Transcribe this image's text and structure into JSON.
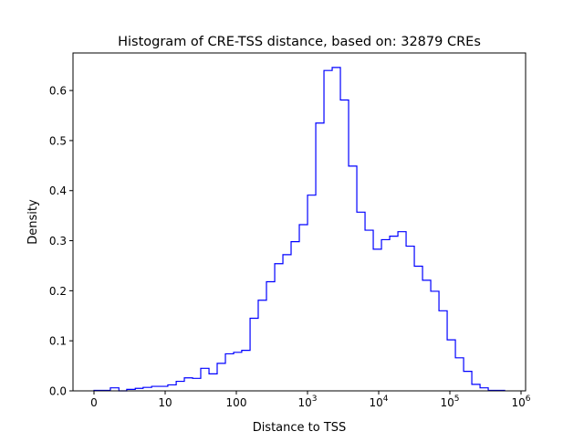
{
  "chart_data": {
    "type": "histogram",
    "title": "Histogram of CRE-TSS distance, based on: 32879 CREs",
    "xlabel": "Distance to TSS",
    "ylabel": "Density",
    "xscale": "symlog",
    "x_ticks": [
      {
        "value": 0,
        "label": "0",
        "sup": ""
      },
      {
        "value": 10,
        "label": "10",
        "sup": ""
      },
      {
        "value": 100,
        "label": "100",
        "sup": ""
      },
      {
        "value": 1000,
        "label": "10",
        "sup": "3"
      },
      {
        "value": 10000,
        "label": "10",
        "sup": "4"
      },
      {
        "value": 100000,
        "label": "10",
        "sup": "5"
      },
      {
        "value": 1000000,
        "label": "10",
        "sup": "6"
      }
    ],
    "y_ticks": [
      "0.0",
      "0.1",
      "0.2",
      "0.3",
      "0.4",
      "0.5",
      "0.6"
    ],
    "ylim": [
      0,
      0.675
    ],
    "grid": false,
    "histtype": "step",
    "color": "#0000ff",
    "bin_edges": [
      0,
      1.2,
      2.3,
      3.5,
      4.6,
      5.8,
      6.9,
      8.1,
      9.2,
      10.9,
      14.3,
      18.6,
      24.3,
      31.6,
      41.3,
      53.8,
      70.2,
      91.6,
      119,
      156,
      203,
      265,
      346,
      451,
      588,
      767,
      1001,
      1306,
      1703,
      2222,
      2897,
      3779,
      4930,
      6430,
      8388,
      10940,
      14270,
      18620,
      24280,
      31670,
      41300,
      53880,
      70280,
      91670,
      119600,
      156000,
      203400,
      265400,
      346100,
      451500,
      588800
    ],
    "density": [
      0.001,
      0.001,
      0.006,
      0.0,
      0.003,
      0.005,
      0.007,
      0.009,
      0.009,
      0.012,
      0.019,
      0.026,
      0.025,
      0.045,
      0.034,
      0.055,
      0.074,
      0.077,
      0.081,
      0.145,
      0.181,
      0.218,
      0.254,
      0.272,
      0.298,
      0.332,
      0.391,
      0.535,
      0.64,
      0.646,
      0.581,
      0.449,
      0.357,
      0.321,
      0.283,
      0.302,
      0.309,
      0.318,
      0.289,
      0.249,
      0.221,
      0.199,
      0.16,
      0.102,
      0.066,
      0.039,
      0.013,
      0.006,
      0.001,
      0.001
    ]
  }
}
